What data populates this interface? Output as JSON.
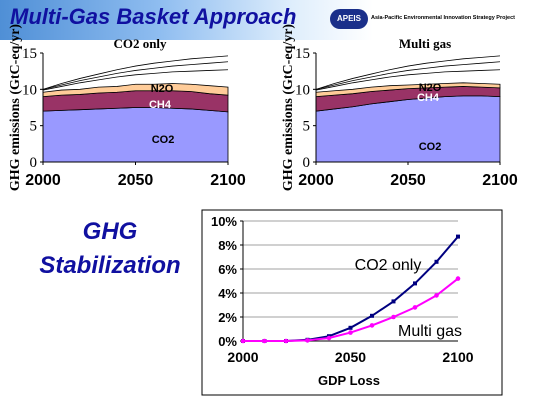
{
  "header": {
    "title": "Multi-Gas Basket Approach",
    "logo_label": "APEIS",
    "logo_text": "Asia-Pacific Environmental Innovation Strategy Project"
  },
  "ghg_heading": {
    "line1": "GHG",
    "line2": "Stabilization"
  },
  "colors": {
    "co2": "#9999ff",
    "ch4": "#993366",
    "n2o": "#ffcc99",
    "co2_only_line": "#000080",
    "multi_gas_line": "#ff00ff",
    "title": "#1010a0"
  },
  "chart_data": [
    {
      "type": "area",
      "title": "CO2 only",
      "ylabel": "GHG emissions (GtC-eq/yr)",
      "xlabel": "",
      "x": [
        2000,
        2010,
        2020,
        2030,
        2040,
        2050,
        2060,
        2070,
        2080,
        2090,
        2100
      ],
      "xticks": [
        "2000",
        "2050",
        "2100"
      ],
      "yticks": [
        "0",
        "5",
        "10",
        "15"
      ],
      "ylim": [
        0,
        15
      ],
      "series": [
        {
          "name": "CO2",
          "values": [
            7.0,
            7.1,
            7.2,
            7.3,
            7.4,
            7.5,
            7.5,
            7.4,
            7.3,
            7.1,
            6.9
          ]
        },
        {
          "name": "CH4",
          "values": [
            2.0,
            2.1,
            2.1,
            2.2,
            2.2,
            2.3,
            2.3,
            2.4,
            2.4,
            2.3,
            2.3
          ]
        },
        {
          "name": "N2O",
          "values": [
            0.6,
            0.7,
            0.7,
            0.8,
            0.8,
            0.9,
            0.9,
            1.0,
            1.0,
            1.1,
            1.1
          ]
        }
      ],
      "upper_lines": [
        [
          9.9,
          10.4,
          10.9,
          11.3,
          11.7,
          12.0,
          12.2,
          12.4,
          12.5,
          12.6,
          12.7
        ],
        [
          10.0,
          10.6,
          11.2,
          11.7,
          12.2,
          12.6,
          12.9,
          13.2,
          13.4,
          13.6,
          13.8
        ],
        [
          10.0,
          10.8,
          11.5,
          12.1,
          12.7,
          13.2,
          13.6,
          13.9,
          14.2,
          14.4,
          14.6
        ]
      ],
      "labels": [
        "N2O",
        "CH4",
        "CO2"
      ]
    },
    {
      "type": "area",
      "title": "Multi gas",
      "ylabel": "GHG emissions (GtC-eq/yr)",
      "xlabel": "",
      "x": [
        2000,
        2010,
        2020,
        2030,
        2040,
        2050,
        2060,
        2070,
        2080,
        2090,
        2100
      ],
      "xticks": [
        "2000",
        "2050",
        "2100"
      ],
      "yticks": [
        "0",
        "5",
        "10",
        "15"
      ],
      "ylim": [
        0,
        15
      ],
      "series": [
        {
          "name": "CO2",
          "values": [
            7.0,
            7.3,
            7.6,
            8.0,
            8.3,
            8.6,
            8.8,
            9.0,
            9.1,
            9.1,
            9.0
          ]
        },
        {
          "name": "CH4",
          "values": [
            2.0,
            1.9,
            1.8,
            1.7,
            1.6,
            1.5,
            1.4,
            1.3,
            1.3,
            1.2,
            1.2
          ]
        },
        {
          "name": "N2O",
          "values": [
            0.6,
            0.6,
            0.6,
            0.6,
            0.6,
            0.5,
            0.5,
            0.5,
            0.5,
            0.5,
            0.5
          ]
        }
      ],
      "upper_lines": [
        [
          9.9,
          10.4,
          10.9,
          11.3,
          11.7,
          12.0,
          12.2,
          12.4,
          12.5,
          12.6,
          12.7
        ],
        [
          10.0,
          10.6,
          11.2,
          11.7,
          12.2,
          12.6,
          12.9,
          13.2,
          13.4,
          13.6,
          13.8
        ],
        [
          10.0,
          10.8,
          11.5,
          12.1,
          12.7,
          13.2,
          13.6,
          13.9,
          14.2,
          14.4,
          14.6
        ]
      ],
      "labels": [
        "N2O",
        "CH4",
        "CO2"
      ]
    },
    {
      "type": "line",
      "title": "",
      "xlabel": "GDP Loss",
      "ylabel": "",
      "x": [
        2000,
        2010,
        2020,
        2030,
        2040,
        2050,
        2060,
        2070,
        2080,
        2090,
        2100
      ],
      "xticks": [
        "2000",
        "2050",
        "2100"
      ],
      "yticks": [
        "0%",
        "2%",
        "4%",
        "6%",
        "8%",
        "10%"
      ],
      "ylim": [
        0,
        10
      ],
      "series": [
        {
          "name": "CO2 only",
          "values": [
            0.0,
            0.0,
            0.0,
            0.1,
            0.4,
            1.1,
            2.1,
            3.3,
            4.8,
            6.6,
            8.7
          ]
        },
        {
          "name": "Multi gas",
          "values": [
            0.0,
            0.0,
            0.0,
            0.05,
            0.25,
            0.7,
            1.3,
            2.0,
            2.8,
            3.8,
            5.2
          ]
        }
      ]
    }
  ]
}
